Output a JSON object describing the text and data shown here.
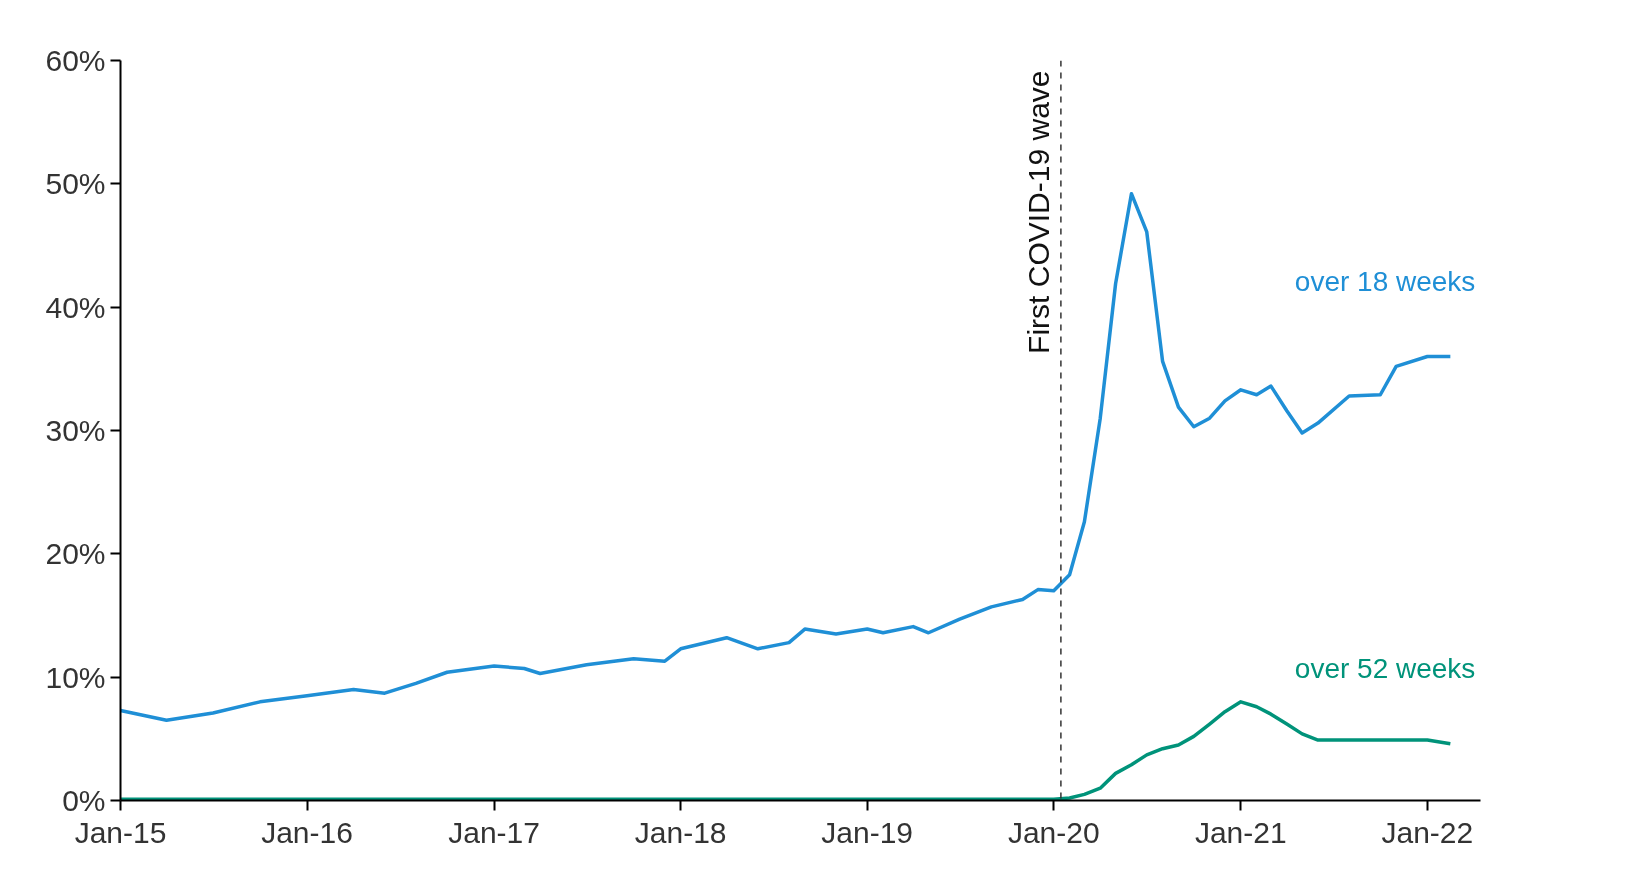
{
  "chart_data": {
    "type": "line",
    "x": [
      "2015-01",
      "2015-04",
      "2015-07",
      "2015-10",
      "2016-01",
      "2016-04",
      "2016-06",
      "2016-08",
      "2016-10",
      "2017-01",
      "2017-03",
      "2017-04",
      "2017-07",
      "2017-10",
      "2017-12",
      "2018-01",
      "2018-04",
      "2018-06",
      "2018-08",
      "2018-09",
      "2018-11",
      "2019-01",
      "2019-02",
      "2019-04",
      "2019-05",
      "2019-07",
      "2019-09",
      "2019-11",
      "2019-12",
      "2020-01",
      "2020-02",
      "2020-03",
      "2020-04",
      "2020-05",
      "2020-06",
      "2020-07",
      "2020-08",
      "2020-09",
      "2020-10",
      "2020-11",
      "2020-12",
      "2021-01",
      "2021-02",
      "2021-03",
      "2021-04",
      "2021-05",
      "2021-06",
      "2021-08",
      "2021-10",
      "2021-11",
      "2022-01",
      "2022-02-15"
    ],
    "series": [
      {
        "name": "over 18 weeks",
        "color": "#1f8fd6",
        "values": [
          7.3,
          6.5,
          7.1,
          8.0,
          8.5,
          9.0,
          8.7,
          9.5,
          10.4,
          10.9,
          10.7,
          10.3,
          11.0,
          11.5,
          11.3,
          12.3,
          13.2,
          12.3,
          12.8,
          13.9,
          13.5,
          13.9,
          13.6,
          14.1,
          13.6,
          14.7,
          15.7,
          16.3,
          17.1,
          17.0,
          18.3,
          22.6,
          31.0,
          41.9,
          49.2,
          46.1,
          35.6,
          31.9,
          30.3,
          31.0,
          32.4,
          33.3,
          32.9,
          33.6,
          31.6,
          29.8,
          30.6,
          32.8,
          32.9,
          35.2,
          36.0,
          36.0
        ]
      },
      {
        "name": "over 52 weeks",
        "color": "#00937a",
        "values": [
          0.1,
          0.1,
          0.1,
          0.1,
          0.1,
          0.1,
          0.1,
          0.1,
          0.1,
          0.1,
          0.1,
          0.1,
          0.1,
          0.1,
          0.1,
          0.1,
          0.1,
          0.1,
          0.1,
          0.1,
          0.1,
          0.1,
          0.1,
          0.1,
          0.1,
          0.1,
          0.1,
          0.1,
          0.1,
          0.1,
          0.2,
          0.5,
          1.0,
          2.2,
          2.9,
          3.7,
          4.2,
          4.5,
          5.2,
          6.2,
          7.2,
          8.0,
          7.6,
          7.0,
          6.2,
          5.4,
          4.9,
          4.9,
          4.9,
          4.9,
          4.9,
          4.6
        ]
      }
    ],
    "xlim": [
      "2015-01",
      "2022-04-15"
    ],
    "xticks": [
      {
        "value": "2015-01",
        "label": "Jan-15"
      },
      {
        "value": "2016-01",
        "label": "Jan-16"
      },
      {
        "value": "2017-01",
        "label": "Jan-17"
      },
      {
        "value": "2018-01",
        "label": "Jan-18"
      },
      {
        "value": "2019-01",
        "label": "Jan-19"
      },
      {
        "value": "2020-01",
        "label": "Jan-20"
      },
      {
        "value": "2021-01",
        "label": "Jan-21"
      },
      {
        "value": "2022-01",
        "label": "Jan-22"
      }
    ],
    "ylim": [
      0,
      60
    ],
    "yticks": [
      {
        "value": 0,
        "label": "0%"
      },
      {
        "value": 10,
        "label": "10%"
      },
      {
        "value": 20,
        "label": "20%"
      },
      {
        "value": 30,
        "label": "30%"
      },
      {
        "value": 40,
        "label": "40%"
      },
      {
        "value": 50,
        "label": "50%"
      },
      {
        "value": 60,
        "label": "60%"
      }
    ],
    "ref_lines": [
      {
        "axis": "x",
        "value": "2020-01-15",
        "label": "First COVID-19 wave",
        "color": "#333333",
        "line_style": "dashed"
      }
    ],
    "grid": false,
    "marker": "none",
    "line_style": "solid"
  }
}
